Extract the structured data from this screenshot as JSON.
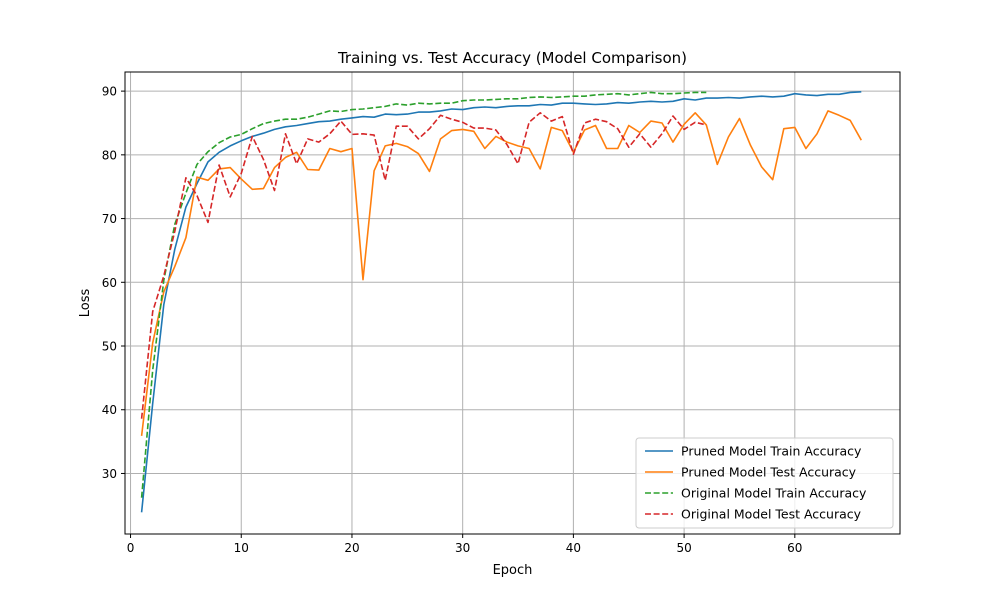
{
  "chart_data": {
    "type": "line",
    "title": "Training vs. Test Accuracy (Model Comparison)",
    "xlabel": "Epoch",
    "ylabel": "Loss",
    "xlim": [
      -0.5,
      69.5
    ],
    "ylim": [
      20.5,
      93.0
    ],
    "xticks": [
      0,
      10,
      20,
      30,
      40,
      50,
      60
    ],
    "yticks": [
      30,
      40,
      50,
      60,
      70,
      80,
      90
    ],
    "grid": true,
    "legend": "lower right",
    "series": [
      {
        "name": "Pruned Model Train Accuracy",
        "color": "#1f77b4",
        "style": "solid",
        "x": [
          1,
          2,
          3,
          4,
          5,
          6,
          7,
          8,
          9,
          10,
          11,
          12,
          13,
          14,
          15,
          16,
          17,
          18,
          19,
          20,
          21,
          22,
          23,
          24,
          25,
          26,
          27,
          28,
          29,
          30,
          31,
          32,
          33,
          34,
          35,
          36,
          37,
          38,
          39,
          40,
          41,
          42,
          43,
          44,
          45,
          46,
          47,
          48,
          49,
          50,
          51,
          52,
          53,
          54,
          55,
          56,
          57,
          58,
          59,
          60,
          61,
          62,
          63,
          64,
          65,
          66
        ],
        "values": [
          23.9,
          41.0,
          56.5,
          65.2,
          71.8,
          75.5,
          78.9,
          80.4,
          81.4,
          82.2,
          82.9,
          83.4,
          84.0,
          84.4,
          84.6,
          84.9,
          85.2,
          85.3,
          85.6,
          85.8,
          86.0,
          85.9,
          86.4,
          86.3,
          86.4,
          86.7,
          86.7,
          86.9,
          87.2,
          87.1,
          87.4,
          87.5,
          87.4,
          87.6,
          87.7,
          87.7,
          87.9,
          87.8,
          88.1,
          88.1,
          88.0,
          87.9,
          88.0,
          88.2,
          88.1,
          88.3,
          88.4,
          88.3,
          88.4,
          88.8,
          88.6,
          88.9,
          88.9,
          89.0,
          88.9,
          89.1,
          89.2,
          89.1,
          89.2,
          89.6,
          89.4,
          89.3,
          89.5,
          89.5,
          89.8,
          89.9
        ]
      },
      {
        "name": "Pruned Model Test Accuracy",
        "color": "#ff7f0e",
        "style": "solid",
        "x": [
          1,
          2,
          3,
          4,
          5,
          6,
          7,
          8,
          9,
          10,
          11,
          12,
          13,
          14,
          15,
          16,
          17,
          18,
          19,
          20,
          21,
          22,
          23,
          24,
          25,
          26,
          27,
          28,
          29,
          30,
          31,
          32,
          33,
          34,
          35,
          36,
          37,
          38,
          39,
          40,
          41,
          42,
          43,
          44,
          45,
          46,
          47,
          48,
          49,
          50,
          51,
          52,
          53,
          54,
          55,
          56,
          57,
          58,
          59,
          60,
          61,
          62,
          63,
          64,
          65,
          66
        ],
        "values": [
          35.9,
          50.5,
          58.5,
          62.5,
          67.0,
          76.5,
          76.0,
          77.8,
          78.0,
          76.2,
          74.6,
          74.7,
          78.0,
          79.6,
          80.4,
          77.7,
          77.6,
          81.0,
          80.5,
          81.0,
          60.4,
          77.5,
          81.4,
          81.8,
          81.3,
          80.2,
          77.4,
          82.5,
          83.8,
          84.0,
          83.7,
          81.0,
          82.9,
          82.0,
          81.4,
          81.0,
          77.8,
          84.3,
          83.8,
          80.4,
          83.9,
          84.6,
          81.0,
          81.0,
          84.6,
          83.5,
          85.3,
          85.0,
          82.0,
          84.8,
          86.6,
          84.7,
          78.5,
          82.8,
          85.7,
          81.5,
          78.1,
          76.1,
          84.1,
          84.3,
          81.0,
          83.3,
          86.9,
          86.2,
          85.4,
          82.3
        ]
      },
      {
        "name": "Original Model Train Accuracy",
        "color": "#2ca02c",
        "style": "dashed",
        "x": [
          1,
          2,
          3,
          4,
          5,
          6,
          7,
          8,
          9,
          10,
          11,
          12,
          13,
          14,
          15,
          16,
          17,
          18,
          19,
          20,
          21,
          22,
          23,
          24,
          25,
          26,
          27,
          28,
          29,
          30,
          31,
          32,
          33,
          34,
          35,
          36,
          37,
          38,
          39,
          40,
          41,
          42,
          43,
          44,
          45,
          46,
          47,
          48,
          49,
          50,
          51,
          52
        ],
        "values": [
          26.2,
          46.2,
          60.3,
          69.1,
          74.0,
          78.5,
          80.5,
          81.9,
          82.8,
          83.2,
          84.1,
          84.9,
          85.3,
          85.6,
          85.6,
          85.9,
          86.4,
          86.9,
          86.8,
          87.1,
          87.2,
          87.4,
          87.6,
          88.0,
          87.8,
          88.1,
          88.0,
          88.1,
          88.1,
          88.5,
          88.6,
          88.6,
          88.7,
          88.8,
          88.8,
          89.0,
          89.1,
          89.0,
          89.1,
          89.2,
          89.2,
          89.4,
          89.5,
          89.6,
          89.4,
          89.6,
          89.8,
          89.6,
          89.6,
          89.7,
          89.8,
          89.8
        ]
      },
      {
        "name": "Original Model Test Accuracy",
        "color": "#d62728",
        "style": "dashed",
        "x": [
          1,
          2,
          3,
          4,
          5,
          6,
          7,
          8,
          9,
          10,
          11,
          12,
          13,
          14,
          15,
          16,
          17,
          18,
          19,
          20,
          21,
          22,
          23,
          24,
          25,
          26,
          27,
          28,
          29,
          30,
          31,
          32,
          33,
          34,
          35,
          36,
          37,
          38,
          39,
          40,
          41,
          42,
          43,
          44,
          45,
          46,
          47,
          48,
          49,
          50,
          51,
          52
        ],
        "values": [
          38.6,
          55.4,
          61.0,
          68.0,
          76.4,
          73.6,
          69.4,
          78.4,
          73.4,
          77.1,
          82.9,
          79.3,
          74.4,
          83.3,
          78.6,
          82.5,
          82.0,
          83.3,
          85.3,
          83.2,
          83.3,
          83.1,
          76.0,
          84.5,
          84.5,
          82.5,
          84.1,
          86.2,
          85.6,
          85.1,
          84.2,
          84.2,
          83.9,
          81.6,
          78.6,
          85.1,
          86.6,
          85.3,
          86.0,
          80.1,
          85.0,
          85.6,
          85.2,
          84.1,
          81.2,
          83.3,
          81.2,
          83.3,
          86.1,
          84.0,
          85.1,
          84.7
        ]
      }
    ]
  }
}
